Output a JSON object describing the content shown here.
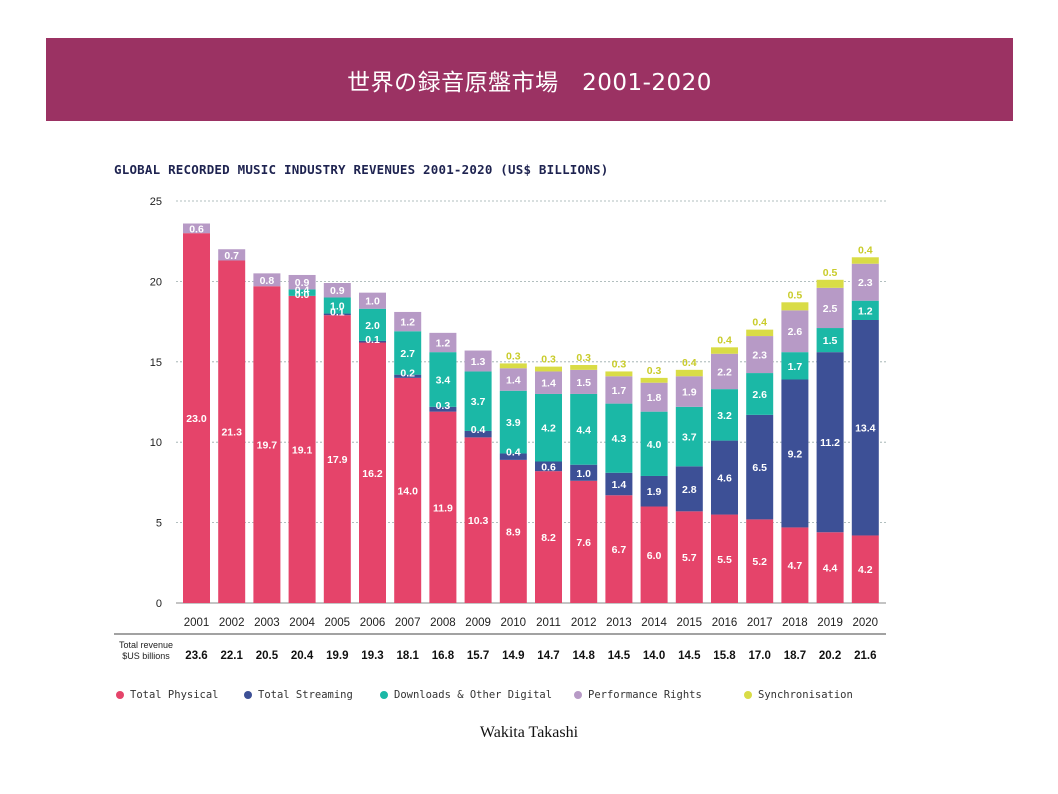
{
  "banner": {
    "title": "世界の録音原盤市場　2001-2020"
  },
  "credit": "Wakita Takashi",
  "chart_data": {
    "type": "bar",
    "stacked": true,
    "title": "GLOBAL RECORDED MUSIC INDUSTRY REVENUES 2001-2020 (US$ BILLIONS)",
    "xlabel": "",
    "ylabel": "",
    "ylim": [
      0,
      25
    ],
    "yticks": [
      0,
      5,
      10,
      15,
      20,
      25
    ],
    "grid": true,
    "legend_position": "bottom",
    "categories": [
      "2001",
      "2002",
      "2003",
      "2004",
      "2005",
      "2006",
      "2007",
      "2008",
      "2009",
      "2010",
      "2011",
      "2012",
      "2013",
      "2014",
      "2015",
      "2016",
      "2017",
      "2018",
      "2019",
      "2020"
    ],
    "series": [
      {
        "name": "Total Physical",
        "color": "#e5446a",
        "values": [
          23.0,
          21.3,
          19.7,
          19.1,
          17.9,
          16.2,
          14.0,
          11.9,
          10.3,
          8.9,
          8.2,
          7.6,
          6.7,
          6.0,
          5.7,
          5.5,
          5.2,
          4.7,
          4.4,
          4.2
        ]
      },
      {
        "name": "Total Streaming",
        "color": "#3d5096",
        "values": [
          null,
          null,
          null,
          0.0,
          0.1,
          0.1,
          0.2,
          0.3,
          0.4,
          0.4,
          0.6,
          1.0,
          1.4,
          1.9,
          2.8,
          4.6,
          6.5,
          9.2,
          11.2,
          13.4
        ]
      },
      {
        "name": "Downloads & Other Digital",
        "color": "#1bb8a6",
        "values": [
          null,
          null,
          null,
          0.4,
          1.0,
          2.0,
          2.7,
          3.4,
          3.7,
          3.9,
          4.2,
          4.4,
          4.3,
          4.0,
          3.7,
          3.2,
          2.6,
          1.7,
          1.5,
          1.2
        ]
      },
      {
        "name": "Performance Rights",
        "color": "#b79ac6",
        "values": [
          0.6,
          0.7,
          0.8,
          0.9,
          0.9,
          1.0,
          1.2,
          1.2,
          1.3,
          1.4,
          1.4,
          1.5,
          1.7,
          1.8,
          1.9,
          2.2,
          2.3,
          2.6,
          2.5,
          2.3
        ]
      },
      {
        "name": "Synchronisation",
        "color": "#d9dc46",
        "values": [
          null,
          null,
          null,
          null,
          null,
          null,
          null,
          null,
          null,
          0.3,
          0.3,
          0.3,
          0.3,
          0.3,
          0.4,
          0.4,
          0.4,
          0.5,
          0.5,
          0.4
        ]
      }
    ],
    "totals_label": "Total revenue\n$US billions",
    "totals": [
      "23.6",
      "22.1",
      "20.5",
      "20.4",
      "19.9",
      "19.3",
      "18.1",
      "16.8",
      "15.7",
      "14.9",
      "14.7",
      "14.8",
      "14.5",
      "14.0",
      "14.5",
      "15.8",
      "17.0",
      "18.7",
      "20.2",
      "21.6"
    ]
  }
}
